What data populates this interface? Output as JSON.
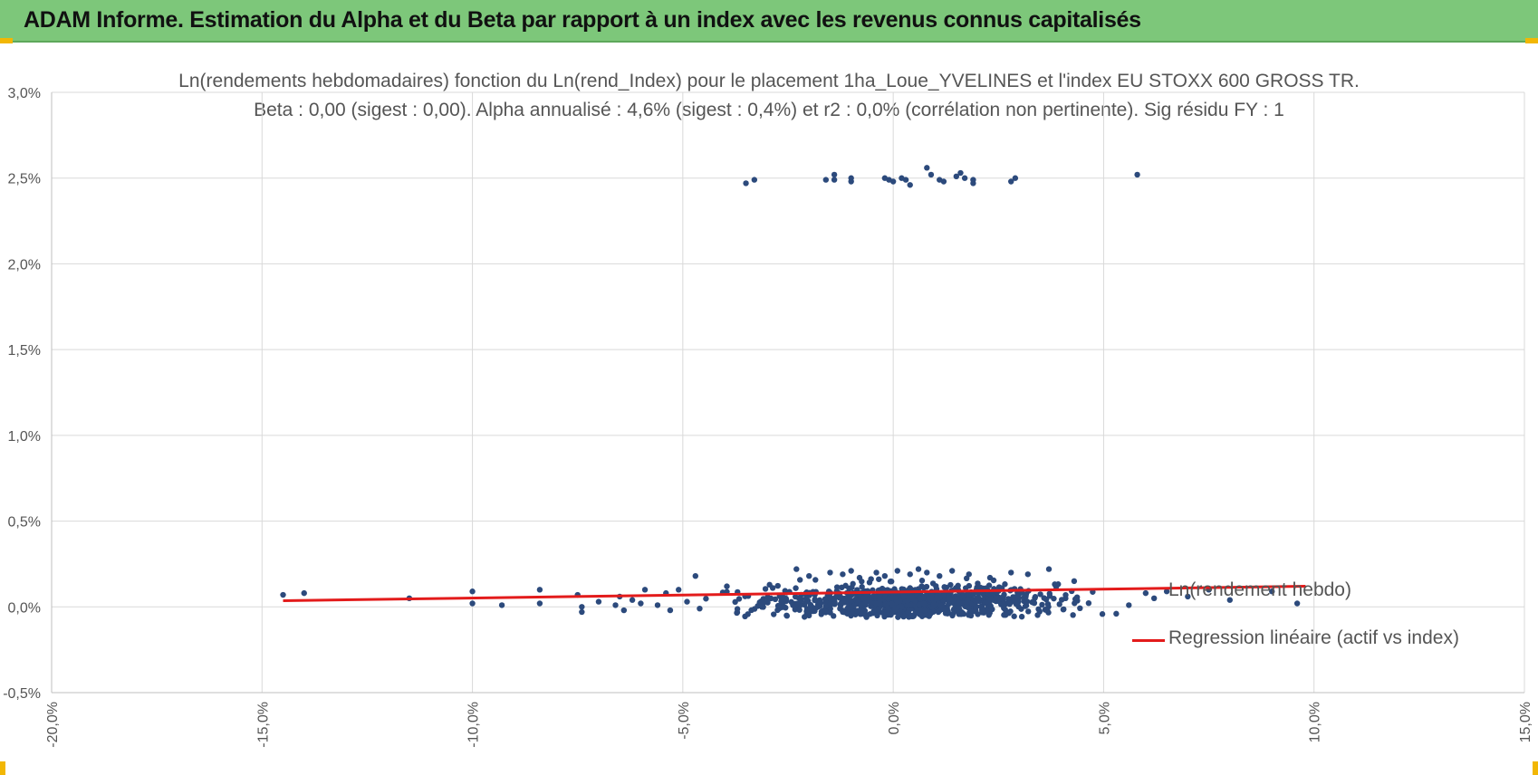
{
  "header": {
    "title": "ADAM Informe. Estimation du Alpha et du Beta par rapport à un index avec les revenus connus capitalisés"
  },
  "colors": {
    "header_bg": "#7dc77a",
    "accent_corner": "#f2b705",
    "scatter": "#2c4a7c",
    "regression": "#e31b1b",
    "grid": "#d9d9d9"
  },
  "chart_data": {
    "type": "scatter",
    "title": "Ln(rendements hebdomadaires) fonction du Ln(rend_Index) pour le placement 1ha_Loue_YVELINES et l'index EU STOXX 600 GROSS TR.",
    "subtitle": "Beta : 0,00 (sigest : 0,00). Alpha annualisé : 4,6% (sigest : 0,4%) et r2 : 0,0% (corrélation non pertinente). Sig résidu FY : 1",
    "xlabel": "",
    "ylabel": "",
    "xlim": [
      -20,
      15
    ],
    "ylim": [
      -0.5,
      3.0
    ],
    "x_ticks": [
      -20,
      -15,
      -10,
      -5,
      0,
      5,
      10,
      15
    ],
    "x_tick_labels": [
      "-20,0%",
      "-15,0%",
      "-10,0%",
      "-5,0%",
      "0,0%",
      "5,0%",
      "10,0%",
      "15,0%"
    ],
    "y_ticks": [
      -0.5,
      0.0,
      0.5,
      1.0,
      1.5,
      2.0,
      2.5,
      3.0
    ],
    "y_tick_labels": [
      "-0,5%",
      "0,0%",
      "0,5%",
      "1,0%",
      "1,5%",
      "2,0%",
      "2,5%",
      "3,0%"
    ],
    "grid": true,
    "legend_position": "right",
    "series": [
      {
        "name": "Ln(rendement hebdo)",
        "type": "scatter",
        "points_outliers": [
          [
            -3.5,
            2.47
          ],
          [
            -3.3,
            2.49
          ],
          [
            -1.6,
            2.49
          ],
          [
            -1.4,
            2.52
          ],
          [
            -1.4,
            2.49
          ],
          [
            -1.0,
            2.5
          ],
          [
            -1.0,
            2.48
          ],
          [
            -0.2,
            2.5
          ],
          [
            -0.1,
            2.49
          ],
          [
            0.0,
            2.48
          ],
          [
            0.2,
            2.5
          ],
          [
            0.3,
            2.49
          ],
          [
            0.4,
            2.46
          ],
          [
            0.8,
            2.56
          ],
          [
            0.9,
            2.52
          ],
          [
            1.1,
            2.49
          ],
          [
            1.2,
            2.48
          ],
          [
            1.5,
            2.51
          ],
          [
            1.6,
            2.53
          ],
          [
            1.7,
            2.5
          ],
          [
            1.9,
            2.49
          ],
          [
            1.9,
            2.47
          ],
          [
            2.8,
            2.48
          ],
          [
            2.9,
            2.5
          ],
          [
            5.8,
            2.52
          ]
        ],
        "points_tail": [
          [
            -14.5,
            0.07
          ],
          [
            -14.0,
            0.08
          ],
          [
            -11.5,
            0.05
          ],
          [
            -10.0,
            0.09
          ],
          [
            -10.0,
            0.02
          ],
          [
            -9.3,
            0.01
          ],
          [
            -8.4,
            0.1
          ],
          [
            -8.4,
            0.02
          ],
          [
            -7.5,
            0.07
          ],
          [
            -7.4,
            0.0
          ],
          [
            -7.4,
            -0.03
          ],
          [
            -7.0,
            0.03
          ],
          [
            -6.6,
            0.01
          ],
          [
            -6.5,
            0.06
          ],
          [
            -6.4,
            -0.02
          ],
          [
            -6.2,
            0.04
          ],
          [
            -6.0,
            0.02
          ],
          [
            -5.9,
            0.1
          ],
          [
            -5.6,
            0.01
          ],
          [
            -5.4,
            0.08
          ],
          [
            -5.3,
            -0.02
          ],
          [
            -5.1,
            0.1
          ],
          [
            -4.9,
            0.03
          ],
          [
            -4.7,
            0.18
          ],
          [
            -4.6,
            -0.01
          ],
          [
            6.0,
            0.08
          ],
          [
            6.2,
            0.05
          ],
          [
            6.5,
            0.09
          ],
          [
            7.0,
            0.06
          ],
          [
            7.5,
            0.1
          ],
          [
            8.0,
            0.04
          ],
          [
            9.0,
            0.09
          ],
          [
            9.6,
            0.02
          ],
          [
            5.3,
            -0.04
          ],
          [
            5.6,
            0.01
          ]
        ],
        "cloud": {
          "x_center": 0.4,
          "x_sd": 1.7,
          "y_center": 0.03,
          "y_sd": 0.05,
          "count": 900
        },
        "upper_fringe": [
          [
            -2.3,
            0.22
          ],
          [
            -2.0,
            0.18
          ],
          [
            -1.5,
            0.2
          ],
          [
            -1.2,
            0.19
          ],
          [
            -0.8,
            0.17
          ],
          [
            -0.4,
            0.2
          ],
          [
            -0.2,
            0.18
          ],
          [
            0.1,
            0.21
          ],
          [
            0.4,
            0.19
          ],
          [
            0.8,
            0.2
          ],
          [
            1.1,
            0.18
          ],
          [
            1.4,
            0.21
          ],
          [
            1.8,
            0.19
          ],
          [
            2.3,
            0.17
          ],
          [
            2.8,
            0.2
          ],
          [
            3.2,
            0.19
          ],
          [
            3.7,
            0.22
          ],
          [
            4.3,
            0.15
          ],
          [
            -1.0,
            0.21
          ],
          [
            0.6,
            0.22
          ]
        ]
      },
      {
        "name": "Regression linéaire (actif vs index)",
        "type": "line",
        "points": [
          [
            -14.5,
            0.036
          ],
          [
            9.8,
            0.12
          ]
        ]
      }
    ]
  }
}
